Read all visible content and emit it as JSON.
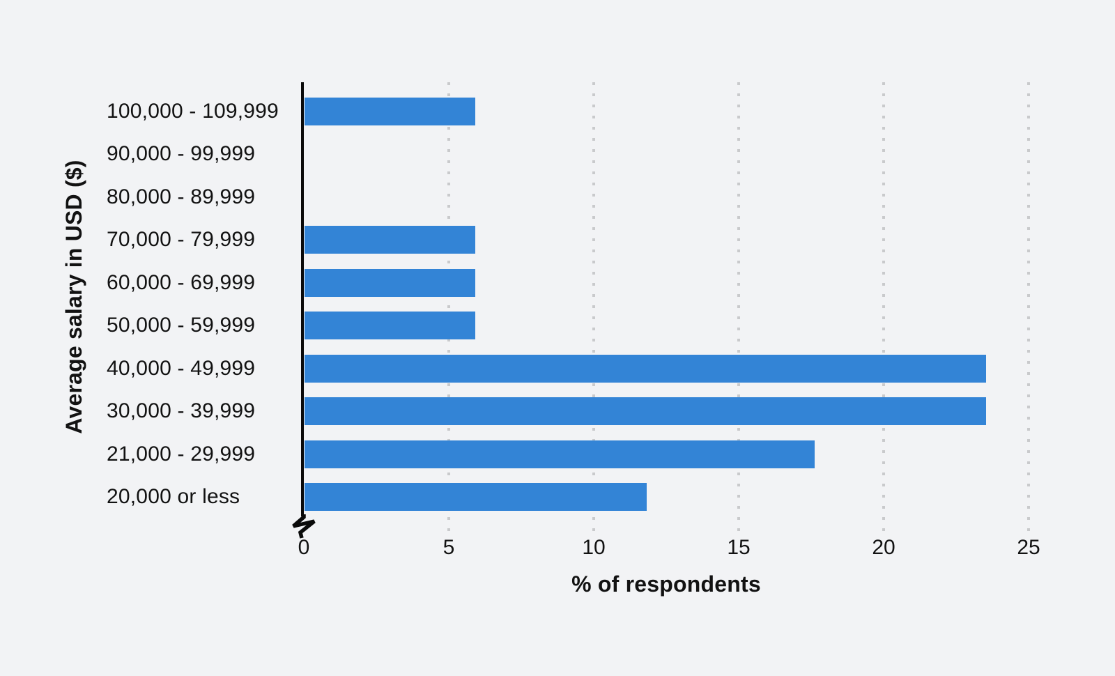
{
  "chart_data": {
    "type": "bar",
    "orientation": "horizontal",
    "title": "",
    "xlabel": "% of respondents",
    "ylabel": "Average salary in USD ($)",
    "categories": [
      "100,000 - 109,999",
      "90,000 - 99,999",
      "80,000 - 89,999",
      "70,000 - 79,999",
      "60,000 - 69,999",
      "50,000 - 59,999",
      "40,000 - 49,999",
      "30,000 - 39,999",
      "21,000 - 29,999",
      "20,000 or less"
    ],
    "values": [
      5.9,
      0,
      0,
      5.9,
      5.9,
      5.9,
      23.5,
      23.5,
      17.6,
      11.8
    ],
    "xlim": [
      0,
      25
    ],
    "xticks": [
      0,
      5,
      10,
      15,
      20,
      25
    ],
    "grid": "vertical-dotted",
    "legend": "none",
    "axis_break_at_zero": true,
    "colors": {
      "bar": "#3384d6",
      "grid": "#c9cacc",
      "text": "#121212",
      "axis": "#0a0a0a",
      "background": "#f2f3f5"
    }
  }
}
